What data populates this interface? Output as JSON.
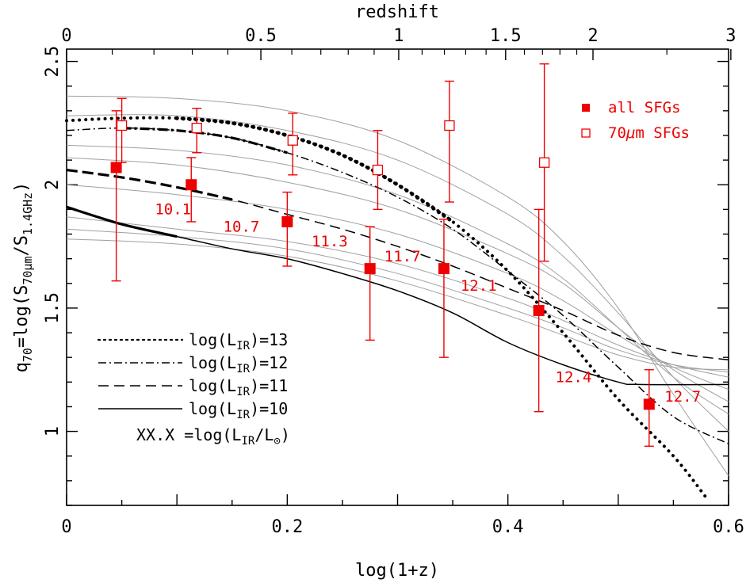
{
  "chart_data": {
    "type": "line",
    "xlabel": "log(1+z)",
    "top_xlabel": "redshift",
    "ylabel_main": "q",
    "ylabel_sub": "70",
    "ylabel_rest": "=log(S",
    "ylabel_s1sub": "70μm",
    "ylabel_mid": "/S",
    "ylabel_s2sub": "1.4GHz",
    "ylabel_end": ")",
    "xlim": [
      0,
      0.6
    ],
    "ylim": [
      0.7,
      2.55
    ],
    "x_ticks": [
      "0",
      "0.2",
      "0.4",
      "0.6"
    ],
    "x_tick_values": [
      0,
      0.2,
      0.4,
      0.6
    ],
    "y_ticks": [
      "1",
      "1.5",
      "2",
      "2.5"
    ],
    "y_tick_values": [
      1,
      1.5,
      2,
      2.5
    ],
    "top_ticks": [
      "0",
      "0.5",
      "1",
      "1.5",
      "2",
      "3"
    ],
    "top_tick_values": [
      0,
      0.5,
      1,
      1.5,
      2,
      3
    ],
    "series_all": {
      "name": "all SFGs",
      "x": [
        0.045,
        0.113,
        0.2,
        0.275,
        0.342,
        0.428,
        0.528
      ],
      "y": [
        2.07,
        2.0,
        1.85,
        1.66,
        1.66,
        1.49,
        1.11
      ],
      "yerr_low": [
        1.61,
        1.85,
        1.67,
        1.37,
        1.3,
        1.08,
        0.94
      ],
      "yerr_high": [
        2.3,
        2.11,
        1.97,
        1.83,
        1.86,
        1.9,
        1.25
      ]
    },
    "series_70": {
      "name": "70μm SFGs",
      "x": [
        0.05,
        0.118,
        0.205,
        0.282,
        0.347,
        0.433
      ],
      "y": [
        2.24,
        2.23,
        2.18,
        2.06,
        2.24,
        2.09
      ],
      "yerr_low": [
        2.09,
        2.13,
        2.04,
        1.9,
        1.93,
        1.69
      ],
      "yerr_high": [
        2.35,
        2.31,
        2.29,
        2.22,
        2.42,
        2.49
      ]
    },
    "lir_labels": [
      {
        "text": "10.1",
        "x": 0.08,
        "y": 1.88
      },
      {
        "text": "10.7",
        "x": 0.142,
        "y": 1.81
      },
      {
        "text": "11.3",
        "x": 0.222,
        "y": 1.75
      },
      {
        "text": "11.7",
        "x": 0.288,
        "y": 1.69
      },
      {
        "text": "12.1",
        "x": 0.357,
        "y": 1.57
      },
      {
        "text": "12.4",
        "x": 0.443,
        "y": 1.2
      },
      {
        "text": "12.7",
        "x": 0.542,
        "y": 1.12
      }
    ],
    "curves": {
      "l13": {
        "x": [
          0,
          0.05,
          0.1,
          0.15,
          0.2,
          0.25,
          0.3,
          0.35,
          0.4,
          0.45,
          0.5,
          0.55,
          0.58
        ],
        "y": [
          2.26,
          2.27,
          2.27,
          2.25,
          2.2,
          2.12,
          2.0,
          1.85,
          1.65,
          1.4,
          1.13,
          0.9,
          0.73
        ]
      },
      "l12": {
        "x": [
          0,
          0.05,
          0.1,
          0.15,
          0.2,
          0.25,
          0.3,
          0.35,
          0.4,
          0.45,
          0.5,
          0.55,
          0.6
        ],
        "y": [
          2.22,
          2.23,
          2.22,
          2.19,
          2.13,
          2.05,
          1.95,
          1.82,
          1.65,
          1.47,
          1.26,
          1.06,
          0.95
        ]
      },
      "l11": {
        "x": [
          0,
          0.05,
          0.1,
          0.15,
          0.2,
          0.25,
          0.3,
          0.35,
          0.4,
          0.45,
          0.5,
          0.55,
          0.6
        ],
        "y": [
          2.06,
          2.03,
          1.99,
          1.94,
          1.88,
          1.82,
          1.75,
          1.67,
          1.58,
          1.49,
          1.39,
          1.32,
          1.29
        ]
      },
      "l10": {
        "x": [
          0,
          0.05,
          0.1,
          0.15,
          0.2,
          0.25,
          0.3,
          0.35,
          0.4,
          0.45,
          0.5,
          0.52,
          0.6
        ],
        "y": [
          1.91,
          1.84,
          1.79,
          1.74,
          1.7,
          1.64,
          1.57,
          1.48,
          1.36,
          1.27,
          1.2,
          1.19,
          1.19
        ]
      },
      "gray": [
        {
          "x": [
            0,
            0.1,
            0.2,
            0.3,
            0.4,
            0.45,
            0.5,
            0.55,
            0.6
          ],
          "y": [
            2.36,
            2.35,
            2.3,
            2.18,
            1.95,
            1.77,
            1.5,
            1.15,
            0.82
          ]
        },
        {
          "x": [
            0,
            0.1,
            0.2,
            0.3,
            0.4,
            0.45,
            0.5,
            0.55,
            0.6
          ],
          "y": [
            2.28,
            2.28,
            2.22,
            2.1,
            1.88,
            1.71,
            1.48,
            1.22,
            1.0
          ]
        },
        {
          "x": [
            0,
            0.1,
            0.2,
            0.3,
            0.4,
            0.45,
            0.5,
            0.55,
            0.6
          ],
          "y": [
            2.16,
            2.14,
            2.08,
            1.96,
            1.76,
            1.62,
            1.42,
            1.22,
            1.07
          ]
        },
        {
          "x": [
            0,
            0.1,
            0.2,
            0.3,
            0.4,
            0.45,
            0.5,
            0.55,
            0.6
          ],
          "y": [
            2.11,
            2.08,
            2.01,
            1.9,
            1.72,
            1.6,
            1.42,
            1.25,
            1.12
          ]
        },
        {
          "x": [
            0,
            0.1,
            0.2,
            0.3,
            0.4,
            0.45,
            0.5,
            0.55,
            0.6
          ],
          "y": [
            2.0,
            1.96,
            1.9,
            1.8,
            1.64,
            1.53,
            1.39,
            1.26,
            1.17
          ]
        },
        {
          "x": [
            0,
            0.1,
            0.2,
            0.3,
            0.4,
            0.45,
            0.5,
            0.55,
            0.6
          ],
          "y": [
            1.87,
            1.82,
            1.77,
            1.68,
            1.54,
            1.45,
            1.35,
            1.27,
            1.22
          ]
        },
        {
          "x": [
            0,
            0.1,
            0.2,
            0.3,
            0.4,
            0.45,
            0.5,
            0.55,
            0.6
          ],
          "y": [
            1.82,
            1.79,
            1.74,
            1.64,
            1.5,
            1.42,
            1.33,
            1.27,
            1.24
          ]
        },
        {
          "x": [
            0,
            0.1,
            0.2,
            0.3,
            0.4,
            0.45,
            0.5,
            0.55,
            0.6
          ],
          "y": [
            1.78,
            1.76,
            1.71,
            1.61,
            1.47,
            1.39,
            1.31,
            1.26,
            1.25
          ]
        }
      ]
    },
    "legend_lines": [
      {
        "style": "dotted",
        "label_pre": "log(L",
        "label_sub": "IR",
        "label_post": ")=13"
      },
      {
        "style": "dashdot",
        "label_pre": "log(L",
        "label_sub": "IR",
        "label_post": ")=12"
      },
      {
        "style": "dashed",
        "label_pre": "log(L",
        "label_sub": "IR",
        "label_post": ")=11"
      },
      {
        "style": "solid",
        "label_pre": "log(L",
        "label_sub": "IR",
        "label_post": ")=10"
      }
    ],
    "legend_xx": {
      "pre": "XX.X =log(L",
      "sub1": "IR",
      "mid": "/L",
      "sub2": "⊙",
      "post": ")"
    },
    "legend_points": [
      {
        "marker": "filled-square",
        "label": "all SFGs"
      },
      {
        "marker": "open-square",
        "label_pre": "70",
        "label_mu": "μ",
        "label_post": "m SFGs"
      }
    ],
    "colors": {
      "points": "#ee0000",
      "gray": "#a0a0a0",
      "axis": "#000000"
    }
  }
}
